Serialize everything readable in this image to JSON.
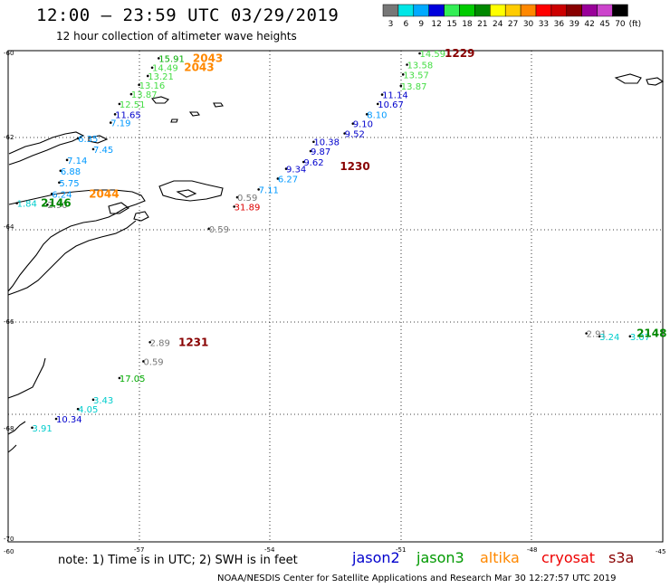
{
  "header": {
    "title": "12:00 – 23:59 UTC 03/29/2019",
    "subtitle": "12 hour collection of altimeter wave heights"
  },
  "color_scale": {
    "unit": "(ft)",
    "bins": [
      {
        "label": "3",
        "color": "#777777"
      },
      {
        "label": "6",
        "color": "#00e6e6"
      },
      {
        "label": "9",
        "color": "#00aaff"
      },
      {
        "label": "12",
        "color": "#0000dd"
      },
      {
        "label": "15",
        "color": "#33ee55"
      },
      {
        "label": "18",
        "color": "#00cc00"
      },
      {
        "label": "21",
        "color": "#008800"
      },
      {
        "label": "24",
        "color": "#ffff00"
      },
      {
        "label": "27",
        "color": "#ffcc00"
      },
      {
        "label": "30",
        "color": "#ff8800"
      },
      {
        "label": "33",
        "color": "#ff0000"
      },
      {
        "label": "36",
        "color": "#cc0000"
      },
      {
        "label": "39",
        "color": "#880000"
      },
      {
        "label": "42",
        "color": "#990099"
      },
      {
        "label": "45",
        "color": "#cc44cc"
      },
      {
        "label": "70",
        "color": "#000000"
      }
    ]
  },
  "axes": {
    "lat_labels": [
      "-60",
      "-62",
      "-64",
      "-66",
      "-68",
      "-70"
    ],
    "lon_labels": [
      "-60",
      "-57",
      "-54",
      "-51",
      "-48",
      "-45"
    ]
  },
  "wave_points": [
    {
      "text": "14.59",
      "color": "#44dd44",
      "lon": -50.57,
      "lat": -60.0
    },
    {
      "text": "13.58",
      "color": "#44dd44",
      "lon": -50.86,
      "lat": -60.23
    },
    {
      "text": "13.57",
      "color": "#44dd44",
      "lon": -50.95,
      "lat": -60.43
    },
    {
      "text": "13.87",
      "color": "#44dd44",
      "lon": -51.0,
      "lat": -60.66
    },
    {
      "text": "11.14",
      "color": "#0000cc",
      "lon": -51.43,
      "lat": -60.84
    },
    {
      "text": "10.67",
      "color": "#0000cc",
      "lon": -51.53,
      "lat": -61.03
    },
    {
      "text": "8.10",
      "color": "#0099ff",
      "lon": -51.78,
      "lat": -61.24
    },
    {
      "text": "9.10",
      "color": "#0000cc",
      "lon": -52.1,
      "lat": -61.43
    },
    {
      "text": "9.52",
      "color": "#0000cc",
      "lon": -52.29,
      "lat": -61.63
    },
    {
      "text": "10.38",
      "color": "#0000cc",
      "lon": -53.0,
      "lat": -61.8
    },
    {
      "text": "9.87",
      "color": "#0000cc",
      "lon": -53.07,
      "lat": -61.99
    },
    {
      "text": "9.62",
      "color": "#0000cc",
      "lon": -53.23,
      "lat": -62.21
    },
    {
      "text": "9.34",
      "color": "#0000cc",
      "lon": -53.63,
      "lat": -62.35
    },
    {
      "text": "6.27",
      "color": "#0099ff",
      "lon": -53.82,
      "lat": -62.55
    },
    {
      "text": "7.11",
      "color": "#0099ff",
      "lon": -54.26,
      "lat": -62.77
    },
    {
      "text": "0.59",
      "color": "#777777",
      "lon": -54.75,
      "lat": -62.93
    },
    {
      "text": "31.89",
      "color": "#dd0000",
      "lon": -54.82,
      "lat": -63.12
    },
    {
      "text": "0.59",
      "color": "#777777",
      "lon": -55.4,
      "lat": -63.57
    },
    {
      "text": "15.91",
      "color": "#00aa00",
      "lon": -56.55,
      "lat": -60.1
    },
    {
      "text": "14.49",
      "color": "#44dd44",
      "lon": -56.7,
      "lat": -60.29
    },
    {
      "text": "13.21",
      "color": "#44dd44",
      "lon": -56.8,
      "lat": -60.46
    },
    {
      "text": "13.16",
      "color": "#44dd44",
      "lon": -57.0,
      "lat": -60.64
    },
    {
      "text": "13.87",
      "color": "#44dd44",
      "lon": -57.18,
      "lat": -60.83
    },
    {
      "text": "12.51",
      "color": "#44dd44",
      "lon": -57.45,
      "lat": -61.03
    },
    {
      "text": "11.65",
      "color": "#0000cc",
      "lon": -57.55,
      "lat": -61.24
    },
    {
      "text": "7.19",
      "color": "#0099ff",
      "lon": -57.65,
      "lat": -61.41
    },
    {
      "text": "6.35",
      "color": "#0099ff",
      "lon": -58.4,
      "lat": -61.73
    },
    {
      "text": "7.45",
      "color": "#0099ff",
      "lon": -58.05,
      "lat": -61.95
    },
    {
      "text": "7.14",
      "color": "#0099ff",
      "lon": -58.65,
      "lat": -62.17
    },
    {
      "text": "6.88",
      "color": "#0099ff",
      "lon": -58.8,
      "lat": -62.39
    },
    {
      "text": "5.75",
      "color": "#0099ff",
      "lon": -58.83,
      "lat": -62.63
    },
    {
      "text": "6.24",
      "color": "#0099ff",
      "lon": -59.0,
      "lat": -62.86
    },
    {
      "text": "1.84",
      "color": "#00cccc",
      "lon": -59.8,
      "lat": -63.05
    },
    {
      "text": "2.90",
      "color": "#777777",
      "lon": -59.1,
      "lat": -63.08
    },
    {
      "text": "2.89",
      "color": "#777777",
      "lon": -56.75,
      "lat": -65.88
    },
    {
      "text": "0.59",
      "color": "#777777",
      "lon": -56.9,
      "lat": -66.27
    },
    {
      "text": "17.05",
      "color": "#00aa00",
      "lon": -57.45,
      "lat": -66.61
    },
    {
      "text": "3.43",
      "color": "#00cccc",
      "lon": -58.05,
      "lat": -67.05
    },
    {
      "text": "4.05",
      "color": "#00cccc",
      "lon": -58.4,
      "lat": -67.24
    },
    {
      "text": "10.34",
      "color": "#0000cc",
      "lon": -58.9,
      "lat": -67.44
    },
    {
      "text": "3.91",
      "color": "#00cccc",
      "lon": -59.45,
      "lat": -67.62
    },
    {
      "text": "2.91",
      "color": "#777777",
      "lon": -46.75,
      "lat": -65.7
    },
    {
      "text": "3.24",
      "color": "#00cccc",
      "lon": -46.45,
      "lat": -65.76
    },
    {
      "text": "3.07",
      "color": "#00cccc",
      "lon": -45.75,
      "lat": -65.76
    }
  ],
  "pass_labels": [
    {
      "text": "1229",
      "color": "#880000",
      "lon": -50.0,
      "lat": -60.0
    },
    {
      "text": "2043",
      "color": "#ff8800",
      "lon": -55.77,
      "lat": -60.1
    },
    {
      "text": "2043",
      "color": "#ff8800",
      "lon": -55.97,
      "lat": -60.29
    },
    {
      "text": "1230",
      "color": "#880000",
      "lon": -52.4,
      "lat": -62.3
    },
    {
      "text": "2044",
      "color": "#ff8800",
      "lon": -58.15,
      "lat": -62.86
    },
    {
      "text": "2146",
      "color": "#008800",
      "lon": -59.25,
      "lat": -63.05
    },
    {
      "text": "1231",
      "color": "#880000",
      "lon": -56.1,
      "lat": -65.88
    },
    {
      "text": "2148",
      "color": "#008800",
      "lon": -45.6,
      "lat": -65.7
    }
  ],
  "footer": {
    "note": "note: 1) Time is in UTC; 2) SWH is in feet",
    "credit": "NOAA/NESDIS Center for Satellite Applications and Research    Mar 30 12:27:57 UTC 2019",
    "satellites": [
      {
        "name": "jason2",
        "color": "#0000cc"
      },
      {
        "name": "jason3",
        "color": "#009900"
      },
      {
        "name": "altika",
        "color": "#ff8800"
      },
      {
        "name": "cryosat",
        "color": "#ee0000"
      },
      {
        "name": "s3a",
        "color": "#880000"
      }
    ]
  }
}
